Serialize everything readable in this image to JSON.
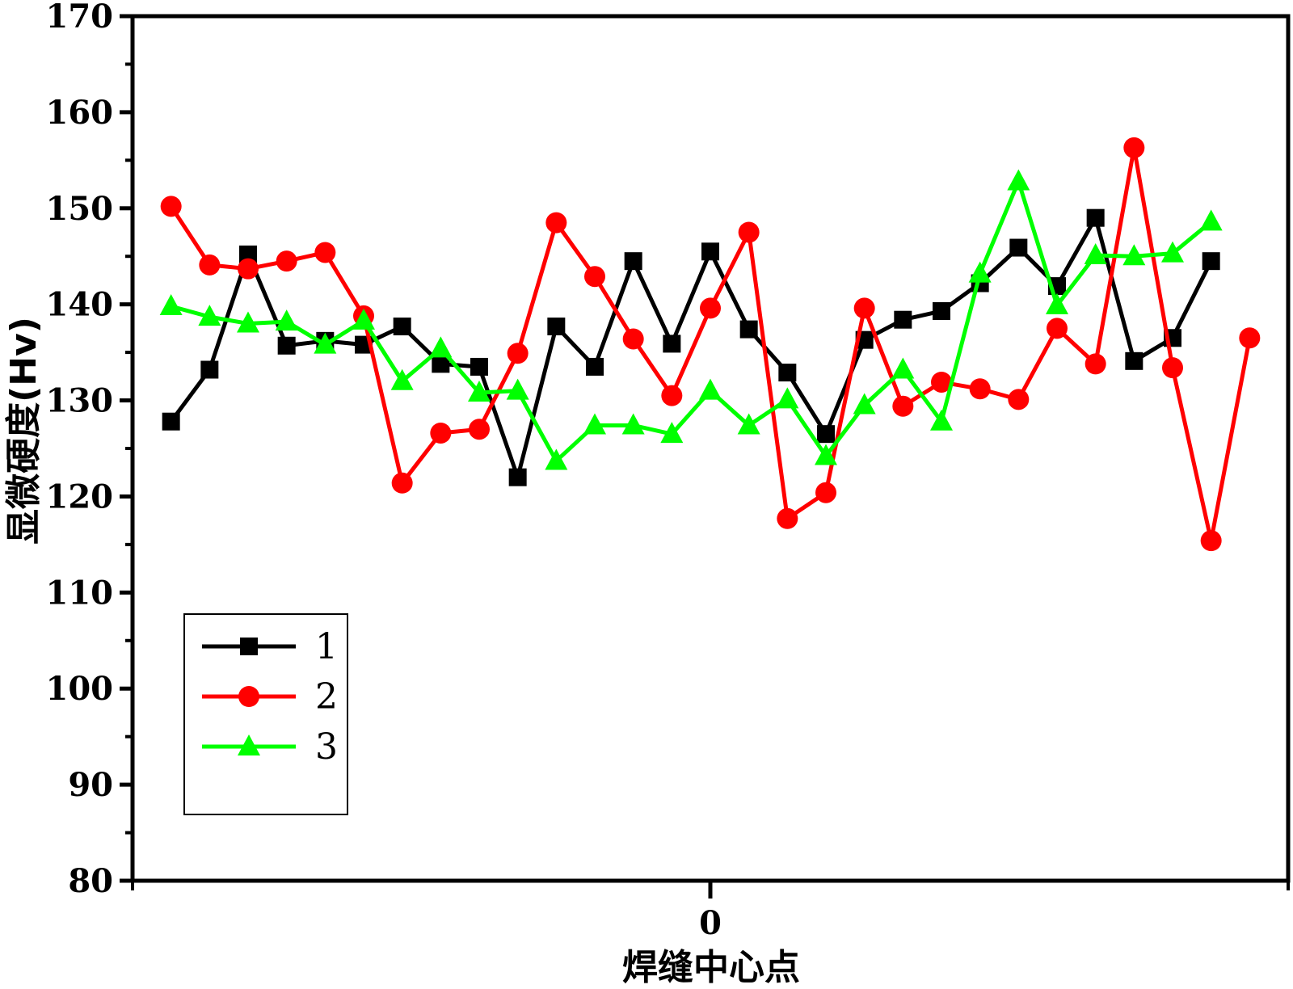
{
  "chart_data": {
    "type": "line",
    "ylabel": "显微硬度(Hv)",
    "xlabel": "焊缝中心点",
    "ylim": [
      80,
      170
    ],
    "yticks": [
      80,
      90,
      100,
      110,
      120,
      130,
      140,
      150,
      160,
      170
    ],
    "xlim": [
      -15,
      15
    ],
    "xticks": [
      0
    ],
    "grid": false,
    "legend_position": "bottom-left",
    "series": [
      {
        "name": "1",
        "color": "#000000",
        "marker": "square",
        "x": [
          -14,
          -13,
          -12,
          -11,
          -10,
          -9,
          -8,
          -7,
          -6,
          -5,
          -4,
          -3,
          -2,
          -1,
          0,
          1,
          2,
          3,
          4,
          5,
          6,
          7,
          8,
          9,
          10,
          11,
          12,
          13
        ],
        "values": [
          127.8,
          133.2,
          145.2,
          135.7,
          136.2,
          135.8,
          137.7,
          133.8,
          133.5,
          122,
          137.7,
          133.5,
          144.5,
          135.9,
          145.5,
          137.4,
          132.9,
          126.5,
          136.3,
          138.4,
          139.3,
          142.2,
          145.9,
          141.9,
          149,
          134.1,
          136.5,
          144.5
        ]
      },
      {
        "name": "2",
        "color": "#ff0000",
        "marker": "circle",
        "x": [
          -14,
          -13,
          -12,
          -11,
          -10,
          -9,
          -8,
          -7,
          -6,
          -5,
          -4,
          -3,
          -2,
          -1,
          0,
          1,
          2,
          3,
          4,
          5,
          6,
          7,
          8,
          9,
          10,
          11,
          12,
          13,
          14
        ],
        "values": [
          150.2,
          144.1,
          143.7,
          144.5,
          145.4,
          138.8,
          121.4,
          126.6,
          127,
          134.9,
          148.5,
          142.9,
          136.4,
          130.5,
          139.6,
          147.5,
          117.7,
          120.4,
          139.6,
          129.4,
          131.9,
          131.2,
          130.1,
          137.5,
          133.8,
          156.3,
          133.4,
          115.4,
          136.5
        ]
      },
      {
        "name": "3",
        "color": "#00ff00",
        "marker": "triangle",
        "x": [
          -14,
          -13,
          -12,
          -11,
          -10,
          -9,
          -8,
          -7,
          -6,
          -5,
          -4,
          -3,
          -2,
          -1,
          0,
          1,
          2,
          3,
          4,
          5,
          6,
          7,
          8,
          9,
          10,
          11,
          12,
          13
        ],
        "values": [
          139.8,
          138.7,
          138,
          138.2,
          135.8,
          138.3,
          132,
          135.4,
          130.8,
          131,
          123.7,
          127.4,
          127.4,
          126.5,
          131,
          127.4,
          130.1,
          124.2,
          129.5,
          133.2,
          127.8,
          143.2,
          152.8,
          139.9,
          145.1,
          145,
          145.3,
          148.6
        ]
      }
    ]
  }
}
